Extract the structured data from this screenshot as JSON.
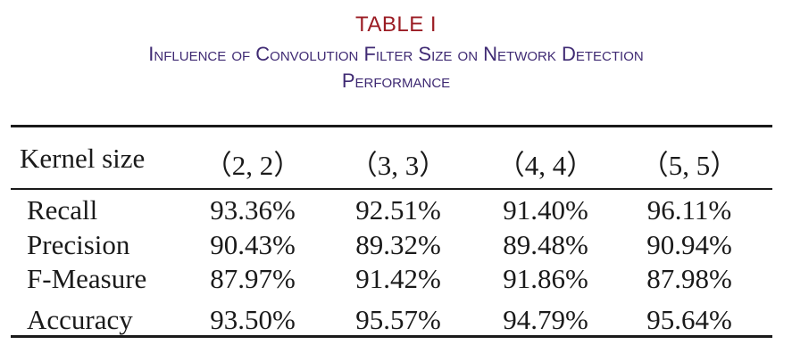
{
  "caption": {
    "label": "TABLE I",
    "title_line1": "Influence of Convolution Filter Size on Network Detection",
    "title_line2": "Performance"
  },
  "table": {
    "header": {
      "label": "Kernel size",
      "columns": [
        "（2, 2）",
        "（3, 3）",
        "（4, 4）",
        "（5, 5）"
      ]
    },
    "rows": [
      {
        "label": "Recall",
        "values": [
          "93.36%",
          "92.51%",
          "91.40%",
          "96.11%"
        ]
      },
      {
        "label": "Precision",
        "values": [
          "90.43%",
          "89.32%",
          "89.48%",
          "90.94%"
        ]
      },
      {
        "label": "F-Measure",
        "values": [
          "87.97%",
          "91.42%",
          "91.86%",
          "87.98%"
        ]
      },
      {
        "label": "Accuracy",
        "values": [
          "93.50%",
          "95.57%",
          "94.79%",
          "95.64%"
        ]
      }
    ]
  }
}
